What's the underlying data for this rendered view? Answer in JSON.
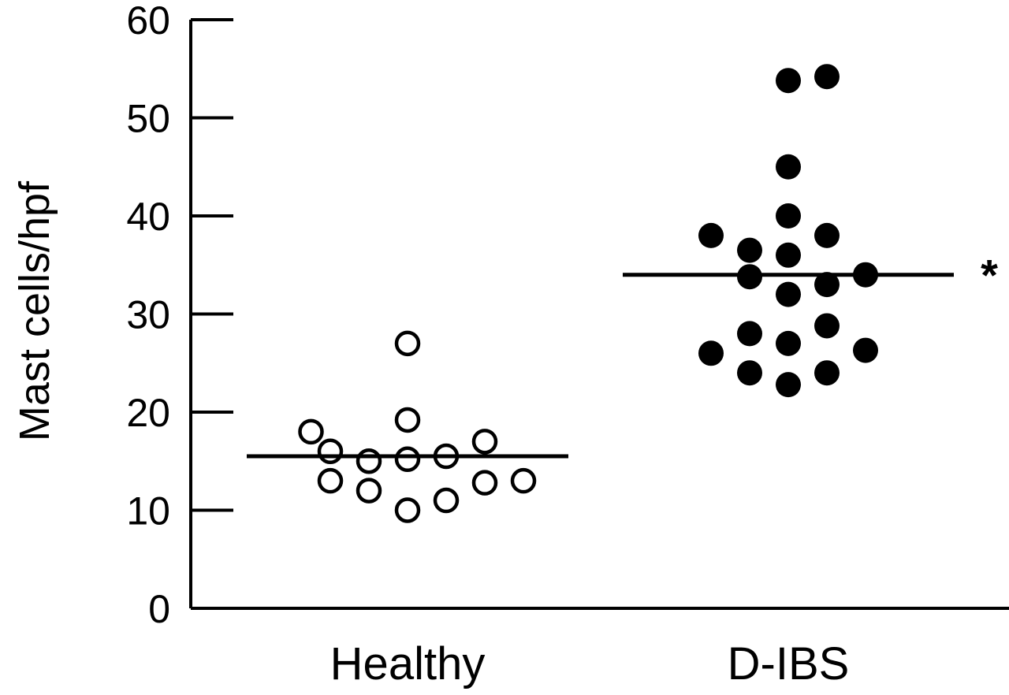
{
  "chart_data": {
    "type": "scatter",
    "ylabel": "Mast cells/hpf",
    "ylim": [
      0,
      60
    ],
    "yticks": [
      "0",
      "10",
      "20",
      "30",
      "40",
      "50",
      "60"
    ],
    "categories": [
      "Healthy",
      "D-IBS"
    ],
    "grid": false,
    "series": [
      {
        "category": "Healthy",
        "marker": "open-circle",
        "median": 15.5,
        "points": [
          {
            "x": -0.5,
            "y": 18
          },
          {
            "x": -0.4,
            "y": 16
          },
          {
            "x": -0.4,
            "y": 13
          },
          {
            "x": -0.2,
            "y": 15
          },
          {
            "x": -0.2,
            "y": 12
          },
          {
            "x": 0.0,
            "y": 27
          },
          {
            "x": 0.0,
            "y": 19.2
          },
          {
            "x": 0.0,
            "y": 15.2
          },
          {
            "x": 0.0,
            "y": 10
          },
          {
            "x": 0.2,
            "y": 15.5
          },
          {
            "x": 0.2,
            "y": 11
          },
          {
            "x": 0.4,
            "y": 17
          },
          {
            "x": 0.4,
            "y": 12.8
          },
          {
            "x": 0.6,
            "y": 13
          }
        ]
      },
      {
        "category": "D-IBS",
        "marker": "filled-circle",
        "median": 34,
        "annotation": "*",
        "points": [
          {
            "x": -0.4,
            "y": 38
          },
          {
            "x": -0.4,
            "y": 26
          },
          {
            "x": -0.2,
            "y": 36.5
          },
          {
            "x": -0.2,
            "y": 33.8
          },
          {
            "x": -0.2,
            "y": 28
          },
          {
            "x": -0.2,
            "y": 24
          },
          {
            "x": 0.0,
            "y": 53.8
          },
          {
            "x": 0.0,
            "y": 45
          },
          {
            "x": 0.0,
            "y": 40
          },
          {
            "x": 0.0,
            "y": 36
          },
          {
            "x": 0.0,
            "y": 32
          },
          {
            "x": 0.0,
            "y": 27
          },
          {
            "x": 0.0,
            "y": 22.8
          },
          {
            "x": 0.2,
            "y": 54.2
          },
          {
            "x": 0.2,
            "y": 38
          },
          {
            "x": 0.2,
            "y": 33
          },
          {
            "x": 0.2,
            "y": 28.8
          },
          {
            "x": 0.2,
            "y": 24
          },
          {
            "x": 0.4,
            "y": 34
          },
          {
            "x": 0.4,
            "y": 26.3
          }
        ]
      }
    ]
  }
}
